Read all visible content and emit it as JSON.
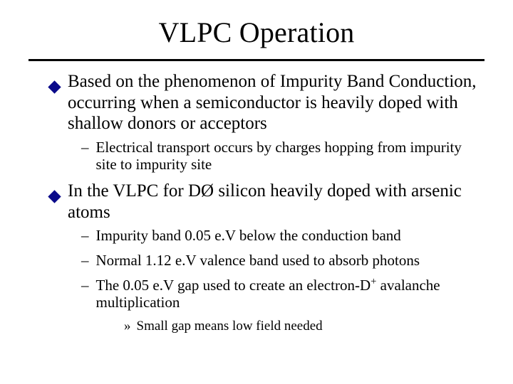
{
  "title": "VLPC Operation",
  "colors": {
    "accent": "#0a0a8a",
    "rule": "#000000",
    "text": "#000000"
  },
  "typography": {
    "title_fontsize": 40,
    "l1_fontsize": 25,
    "l2_fontsize": 21,
    "l3_fontsize": 19,
    "font_family": "Times New Roman"
  },
  "bullets": {
    "l1_shape": "diamond",
    "l1_color": "#0a0a8a",
    "l2_marker": "–",
    "l3_marker": "»"
  },
  "content": [
    {
      "level": 1,
      "text": "Based on the phenomenon of Impurity Band Conduction, occurring when a semiconductor is heavily doped with shallow donors or acceptors"
    },
    {
      "level": 2,
      "text": "Electrical transport occurs by charges hopping from impurity site to impurity site"
    },
    {
      "level": 1,
      "text": "In the VLPC for DØ silicon heavily doped with arsenic atoms"
    },
    {
      "level": 2,
      "text": "Impurity band 0.05 e.V below the conduction band"
    },
    {
      "level": 2,
      "text": "Normal 1.12 e.V valence band used to absorb photons"
    },
    {
      "level": 2,
      "html": true,
      "text": "The 0.05 e.V gap used to create an electron-D<sup>+</sup> avalanche multiplication"
    },
    {
      "level": 3,
      "text": "Small gap means low field needed"
    }
  ]
}
